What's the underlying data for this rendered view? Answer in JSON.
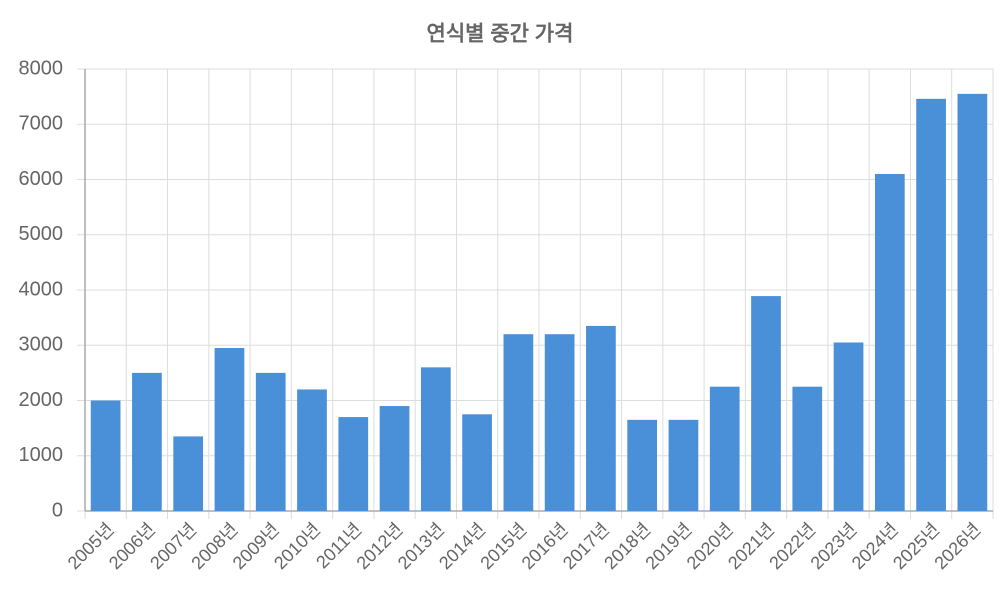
{
  "chart_data": {
    "type": "bar",
    "title": "연식별 중간 가격",
    "categories": [
      "2005년",
      "2006년",
      "2007년",
      "2008년",
      "2009년",
      "2010년",
      "2011년",
      "2012년",
      "2013년",
      "2014년",
      "2015년",
      "2016년",
      "2017년",
      "2018년",
      "2019년",
      "2020년",
      "2021년",
      "2022년",
      "2023년",
      "2024년",
      "2025년",
      "2026년"
    ],
    "values": [
      2000,
      2500,
      1350,
      2950,
      2500,
      2200,
      1700,
      1900,
      2600,
      1750,
      3200,
      3200,
      3350,
      1650,
      1650,
      2250,
      3890,
      2250,
      3050,
      6100,
      7460,
      7550
    ],
    "color": "#4a90d9",
    "ylim": [
      0,
      8000
    ],
    "yticks": [
      0,
      1000,
      2000,
      3000,
      4000,
      5000,
      6000,
      7000,
      8000
    ],
    "grid": true
  }
}
